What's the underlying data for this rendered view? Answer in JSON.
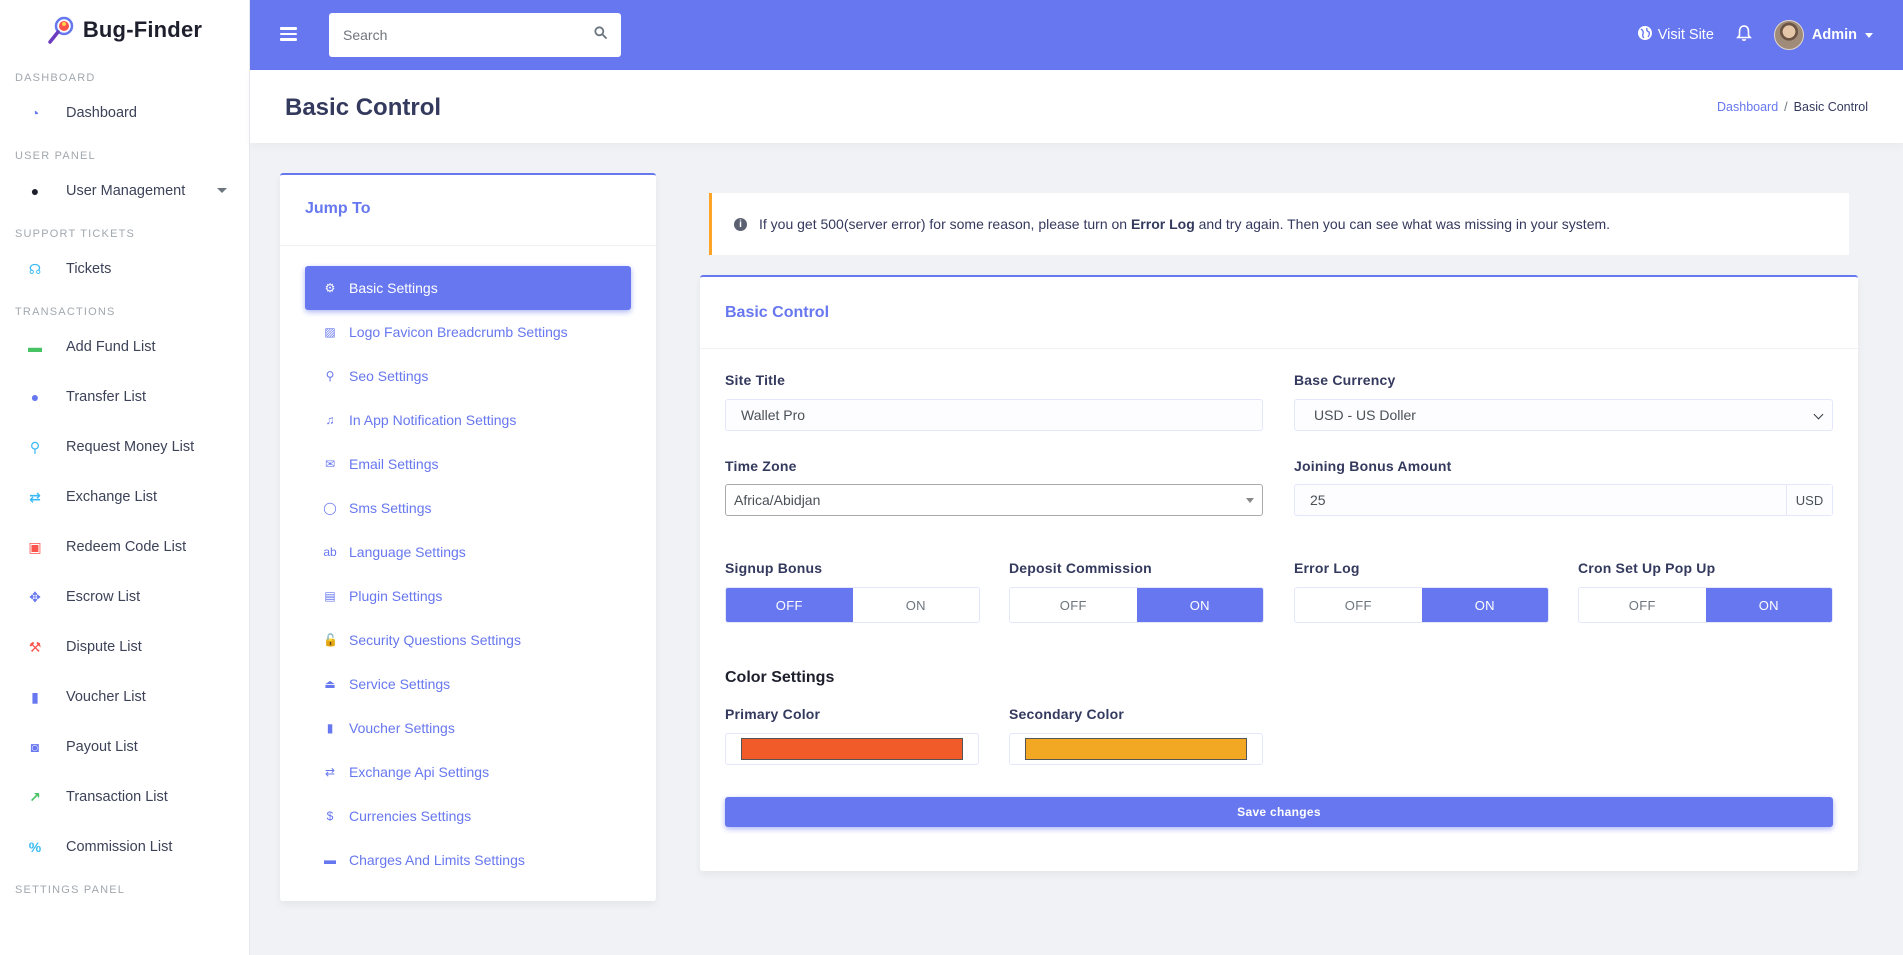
{
  "brand": {
    "name": "Bug-Finder"
  },
  "sidebar": {
    "sections": [
      {
        "header": "Dashboard",
        "items": [
          {
            "label": "Dashboard",
            "icon": "gauge-icon",
            "glyph": "◔",
            "color": "#6777ef"
          }
        ]
      },
      {
        "header": "User Panel",
        "items": [
          {
            "label": "User Management",
            "icon": "users-icon",
            "glyph": "●",
            "color": "#1d1f2c",
            "caret": true
          }
        ]
      },
      {
        "header": "Support Tickets",
        "items": [
          {
            "label": "Tickets",
            "icon": "headset-icon",
            "glyph": "☊",
            "color": "#3abaf4"
          }
        ]
      },
      {
        "header": "Transactions",
        "items": [
          {
            "label": "Add Fund List",
            "icon": "money-bill-icon",
            "glyph": "▬",
            "color": "#47c363"
          },
          {
            "label": "Transfer List",
            "icon": "user-friends-icon",
            "glyph": "●",
            "color": "#6777ef"
          },
          {
            "label": "Request Money List",
            "icon": "search-dollar-icon",
            "glyph": "⚲",
            "color": "#3abaf4"
          },
          {
            "label": "Exchange List",
            "icon": "exchange-icon",
            "glyph": "⇄",
            "color": "#3abaf4"
          },
          {
            "label": "Redeem Code List",
            "icon": "gift-icon",
            "glyph": "▣",
            "color": "#fc544b"
          },
          {
            "label": "Escrow List",
            "icon": "handshake-icon",
            "glyph": "✥",
            "color": "#6777ef"
          },
          {
            "label": "Dispute List",
            "icon": "gavel-icon",
            "glyph": "⚒",
            "color": "#fc544b"
          },
          {
            "label": "Voucher List",
            "icon": "file-invoice-icon",
            "glyph": "▮",
            "color": "#6777ef"
          },
          {
            "label": "Payout List",
            "icon": "money-check-icon",
            "glyph": "◙",
            "color": "#6777ef"
          },
          {
            "label": "Transaction List",
            "icon": "chart-line-icon",
            "glyph": "↗",
            "color": "#47c363"
          },
          {
            "label": "Commission List",
            "icon": "percent-icon",
            "glyph": "%",
            "color": "#3abaf4"
          }
        ]
      },
      {
        "header": "Settings Panel",
        "items": []
      }
    ]
  },
  "navbar": {
    "search_placeholder": "Search",
    "visit_site": "Visit Site",
    "user": "Admin"
  },
  "page": {
    "title": "Basic Control",
    "breadcrumb": {
      "home": "Dashboard",
      "sep": "/",
      "current": "Basic Control"
    }
  },
  "jump": {
    "title": "Jump To",
    "items": [
      {
        "label": "Basic Settings",
        "glyph": "⚙",
        "icon": "cog-icon",
        "active": true
      },
      {
        "label": "Logo Favicon Breadcrumb Settings",
        "glyph": "▨",
        "icon": "image-icon"
      },
      {
        "label": "Seo Settings",
        "glyph": "⚲",
        "icon": "search-plus-icon"
      },
      {
        "label": "In App Notification Settings",
        "glyph": "♫",
        "icon": "bell-icon"
      },
      {
        "label": "Email Settings",
        "glyph": "✉",
        "icon": "envelope-icon"
      },
      {
        "label": "Sms Settings",
        "glyph": "◯",
        "icon": "comment-icon"
      },
      {
        "label": "Language Settings",
        "glyph": "ab",
        "icon": "language-icon"
      },
      {
        "label": "Plugin Settings",
        "glyph": "▤",
        "icon": "toolbox-icon"
      },
      {
        "label": "Security Questions Settings",
        "glyph": "🔓",
        "icon": "unlock-icon"
      },
      {
        "label": "Service Settings",
        "glyph": "⏏",
        "icon": "concierge-bell-icon"
      },
      {
        "label": "Voucher Settings",
        "glyph": "▮",
        "icon": "file-invoice-icon"
      },
      {
        "label": "Exchange Api Settings",
        "glyph": "⇄",
        "icon": "exchange-icon"
      },
      {
        "label": "Currencies Settings",
        "glyph": "$",
        "icon": "dollar-icon"
      },
      {
        "label": "Charges And Limits Settings",
        "glyph": "▬",
        "icon": "money-bill-icon"
      }
    ]
  },
  "alert": {
    "before": "If you get 500(server error) for some reason, please turn on ",
    "strong": "Error Log",
    "after": " and try again. Then you can see what was missing in your system."
  },
  "form": {
    "card_title": "Basic Control",
    "site_title": {
      "label": "Site Title",
      "value": "Wallet Pro"
    },
    "base_currency": {
      "label": "Base Currency",
      "value": "USD - US Doller"
    },
    "time_zone": {
      "label": "Time Zone",
      "value": "Africa/Abidjan"
    },
    "joining_bonus": {
      "label": "Joining Bonus Amount",
      "value": "25",
      "addon": "USD"
    },
    "toggles": [
      {
        "label": "Signup Bonus",
        "off": "OFF",
        "on": "ON",
        "state": "off"
      },
      {
        "label": "Deposit Commission",
        "off": "OFF",
        "on": "ON",
        "state": "on"
      },
      {
        "label": "Error Log",
        "off": "OFF",
        "on": "ON",
        "state": "on"
      },
      {
        "label": "Cron Set Up Pop Up",
        "off": "OFF",
        "on": "ON",
        "state": "on"
      }
    ],
    "color_section": "Color Settings",
    "primary_color": {
      "label": "Primary Color",
      "value": "#f15a29"
    },
    "secondary_color": {
      "label": "Secondary Color",
      "value": "#f2a823"
    },
    "save_label": "Save changes"
  }
}
